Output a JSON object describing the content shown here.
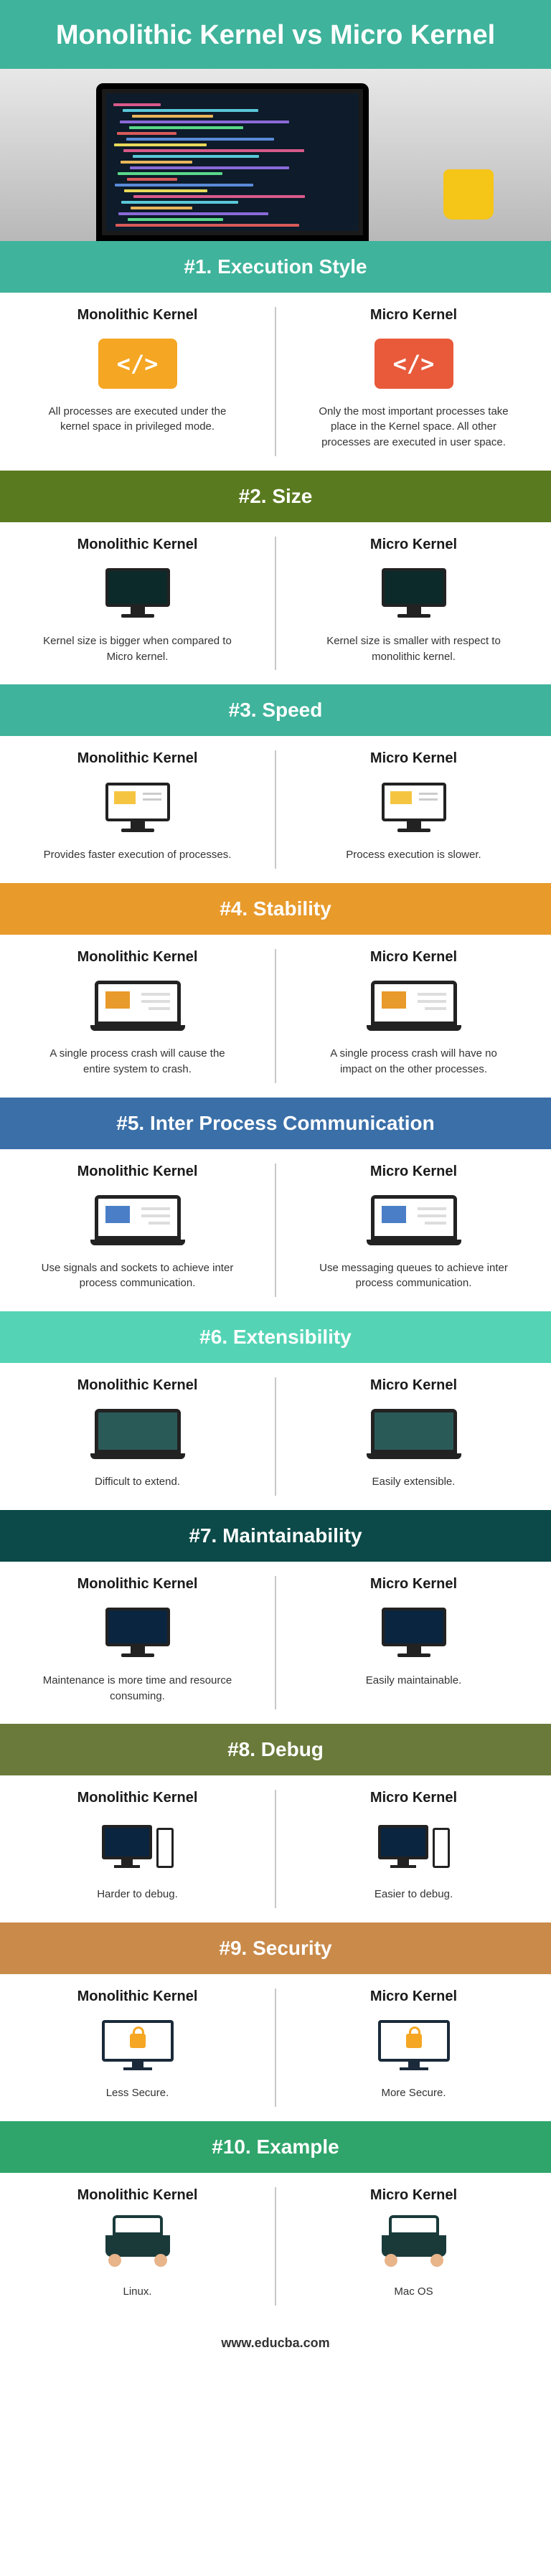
{
  "title": "Monolithic Kernel vs Micro Kernel",
  "colors": {
    "teal": "#3fb39b",
    "teal_light": "#5fd4bc",
    "olive": "#5a7a1f",
    "amber": "#e89a2b",
    "blue": "#3a6fa8",
    "mint": "#54d4b5",
    "dark_teal": "#0b4a48",
    "olive2": "#6a7a3a",
    "tan": "#c98a4a",
    "green": "#2fa56b"
  },
  "columns": {
    "left": "Monolithic Kernel",
    "right": "Micro Kernel"
  },
  "sections": [
    {
      "num": "#1.",
      "title": "Execution Style",
      "header_color": "#3fb39b",
      "left_desc": "All processes are executed under the kernel space in privileged mode.",
      "right_desc": "Only the most important processes take place in the Kernel space. All other processes are executed in user space.",
      "icon": "code",
      "icon_bg_left": "#f5a623",
      "icon_bg_right": "#e85a3a"
    },
    {
      "num": "#2.",
      "title": "Size",
      "header_color": "#5a7a1f",
      "left_desc": "Kernel size is bigger when compared to Micro kernel.",
      "right_desc": "Kernel size is smaller with respect to monolithic kernel.",
      "icon": "monitor",
      "screen_bg": "#0d2a2a"
    },
    {
      "num": "#3.",
      "title": "Speed",
      "header_color": "#3fb39b",
      "left_desc": "Provides faster execution of processes.",
      "right_desc": "Process execution is slower.",
      "icon": "monitor",
      "screen_bg": "#ffffff",
      "screen_accent": "#f5c542"
    },
    {
      "num": "#4.",
      "title": "Stability",
      "header_color": "#e89a2b",
      "left_desc": "A single process crash will cause the entire system to crash.",
      "right_desc": "A single process crash will have no impact on the other processes.",
      "icon": "laptop",
      "screen_bg": "#ffffff",
      "screen_accent": "#e89a2b"
    },
    {
      "num": "#5.",
      "title": "Inter Process Communication",
      "header_color": "#3a6fa8",
      "left_desc": "Use signals and sockets to achieve inter process communication.",
      "right_desc": "Use messaging queues to achieve inter process communication.",
      "icon": "laptop",
      "screen_bg": "#ffffff",
      "screen_accent": "#4a7fc8"
    },
    {
      "num": "#6.",
      "title": "Extensibility",
      "header_color": "#54d4b5",
      "left_desc": "Difficult to extend.",
      "right_desc": "Easily extensible.",
      "icon": "laptop",
      "screen_bg": "#2a5a58"
    },
    {
      "num": "#7.",
      "title": "Maintainability",
      "header_color": "#0b4a48",
      "left_desc": "Maintenance is more time and resource consuming.",
      "right_desc": "Easily maintainable.",
      "icon": "monitor",
      "screen_bg": "#0a2540"
    },
    {
      "num": "#8.",
      "title": "Debug",
      "header_color": "#6a7a3a",
      "left_desc": "Harder to debug.",
      "right_desc": "Easier to debug.",
      "icon": "pc"
    },
    {
      "num": "#9.",
      "title": "Security",
      "header_color": "#c98a4a",
      "left_desc": "Less Secure.",
      "right_desc": "More Secure.",
      "icon": "security"
    },
    {
      "num": "#10.",
      "title": "Example",
      "header_color": "#2fa56b",
      "left_desc": "Linux.",
      "right_desc": "Mac OS",
      "icon": "example"
    }
  ],
  "footer": "www.educba.com",
  "hero_code_colors": [
    "#d85a8a",
    "#5ac8d8",
    "#e8b45a",
    "#8a6ad8",
    "#5ad88a",
    "#d85a5a",
    "#5a8ad8",
    "#e8d85a"
  ]
}
